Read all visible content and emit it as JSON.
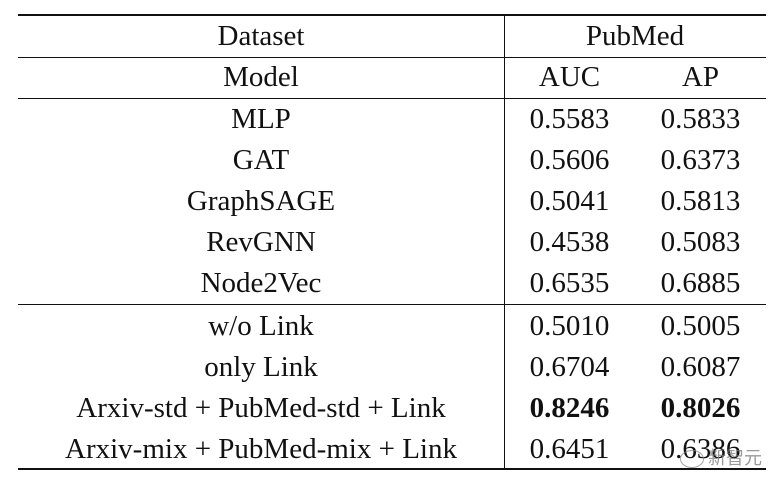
{
  "header": {
    "dataset_label": "Dataset",
    "dataset_name": "PubMed",
    "model_label": "Model",
    "auc_label": "AUC",
    "ap_label": "AP"
  },
  "groups": [
    {
      "rows": [
        {
          "model": "MLP",
          "auc": "0.5583",
          "ap": "0.5833",
          "bold": false
        },
        {
          "model": "GAT",
          "auc": "0.5606",
          "ap": "0.6373",
          "bold": false
        },
        {
          "model": "GraphSAGE",
          "auc": "0.5041",
          "ap": "0.5813",
          "bold": false
        },
        {
          "model": "RevGNN",
          "auc": "0.4538",
          "ap": "0.5083",
          "bold": false
        },
        {
          "model": "Node2Vec",
          "auc": "0.6535",
          "ap": "0.6885",
          "bold": false
        }
      ]
    },
    {
      "rows": [
        {
          "model": "w/o Link",
          "auc": "0.5010",
          "ap": "0.5005",
          "bold": false
        },
        {
          "model": "only Link",
          "auc": "0.6704",
          "ap": "0.6087",
          "bold": false
        },
        {
          "model": "Arxiv-std + PubMed-std + Link",
          "auc": "0.8246",
          "ap": "0.8026",
          "bold": true
        },
        {
          "model": "Arxiv-mix + PubMed-mix + Link",
          "auc": "0.6451",
          "ap": "0.6386",
          "bold": false
        }
      ]
    }
  ],
  "watermark": {
    "text": "新智元",
    "icon": "wechat-icon"
  }
}
